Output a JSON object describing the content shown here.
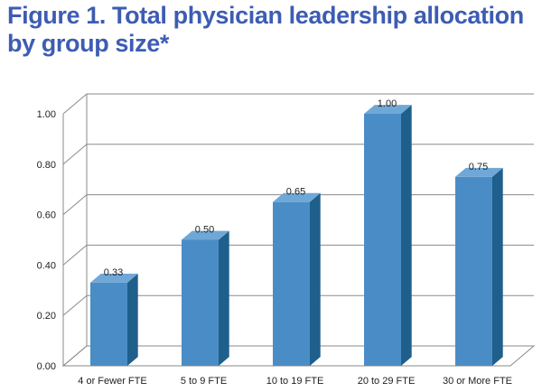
{
  "title_lines": [
    "Figure 1. Total physician leadership allocation",
    "by group size*"
  ],
  "chart_data": {
    "type": "bar",
    "categories": [
      "4 or Fewer FTE",
      "5 to 9 FTE",
      "10 to 19 FTE",
      "20 to 29 FTE",
      "30 or More FTE"
    ],
    "values": [
      0.33,
      0.5,
      0.65,
      1.0,
      0.75
    ],
    "data_labels": [
      "0.33",
      "0.50",
      "0.65",
      "1.00",
      "0.75"
    ],
    "yticks": [
      "0.00",
      "0.20",
      "0.40",
      "0.60",
      "0.80",
      "1.00"
    ],
    "ylim": [
      0,
      1.0
    ],
    "ytick_step": 0.2,
    "grid": true,
    "style": "3d-column",
    "bar_color": "#4a8dc6",
    "bar_side_color": "#1f5f8c",
    "bar_top_color": "#6fa8d6"
  }
}
